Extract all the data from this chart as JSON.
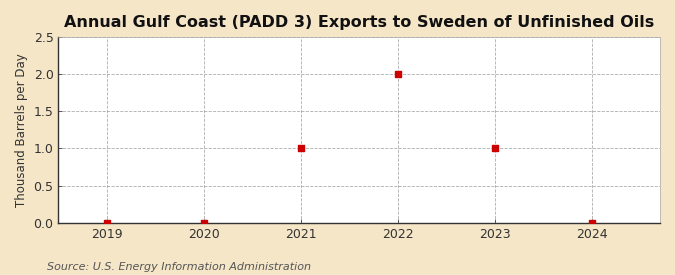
{
  "title": "Annual Gulf Coast (PADD 3) Exports to Sweden of Unfinished Oils",
  "ylabel": "Thousand Barrels per Day",
  "source": "Source: U.S. Energy Information Administration",
  "fig_background_color": "#f5e6c8",
  "plot_background_color": "#ffffff",
  "x_values": [
    2019,
    2020,
    2021,
    2022,
    2023,
    2024
  ],
  "y_values": [
    0.0,
    0.0,
    1.0,
    2.0,
    1.0,
    0.0
  ],
  "marker_color": "#cc0000",
  "marker_size": 4,
  "ylim": [
    0.0,
    2.5
  ],
  "yticks": [
    0.0,
    0.5,
    1.0,
    1.5,
    2.0,
    2.5
  ],
  "xlim": [
    2018.5,
    2024.7
  ],
  "xticks": [
    2019,
    2020,
    2021,
    2022,
    2023,
    2024
  ],
  "grid_color": "#999999",
  "grid_style": "--",
  "title_fontsize": 11.5,
  "label_fontsize": 8.5,
  "tick_fontsize": 9,
  "source_fontsize": 8
}
